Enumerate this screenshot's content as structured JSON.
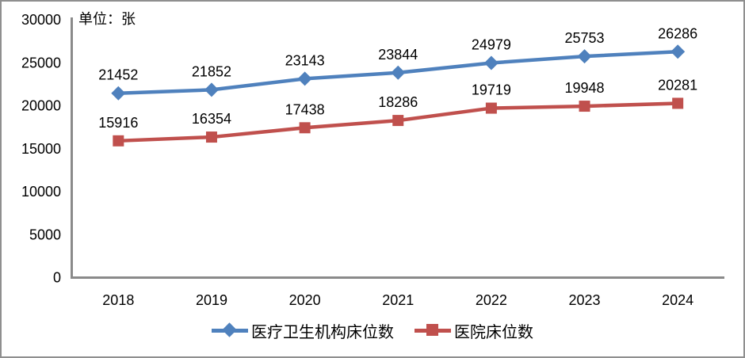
{
  "chart_data": {
    "type": "line",
    "title": "",
    "unit_label": "单位：张",
    "categories": [
      "2018",
      "2019",
      "2020",
      "2021",
      "2022",
      "2023",
      "2024"
    ],
    "series": [
      {
        "name": "医疗卫生机构床位数",
        "values": [
          21452,
          21852,
          23143,
          23844,
          24979,
          25753,
          26286
        ],
        "color": "#4F81BD",
        "marker": "diamond"
      },
      {
        "name": "医院床位数",
        "values": [
          15916,
          16354,
          17438,
          18286,
          19719,
          19948,
          20281
        ],
        "color": "#C0504D",
        "marker": "square"
      }
    ],
    "ylim": [
      0,
      30000
    ],
    "yticks": [
      0,
      5000,
      10000,
      15000,
      20000,
      25000,
      30000
    ],
    "grid": false,
    "legend_position": "bottom",
    "axis_color": "#8A8A8A",
    "label_color": "#000000",
    "frame_color": "#8f8f8f"
  }
}
